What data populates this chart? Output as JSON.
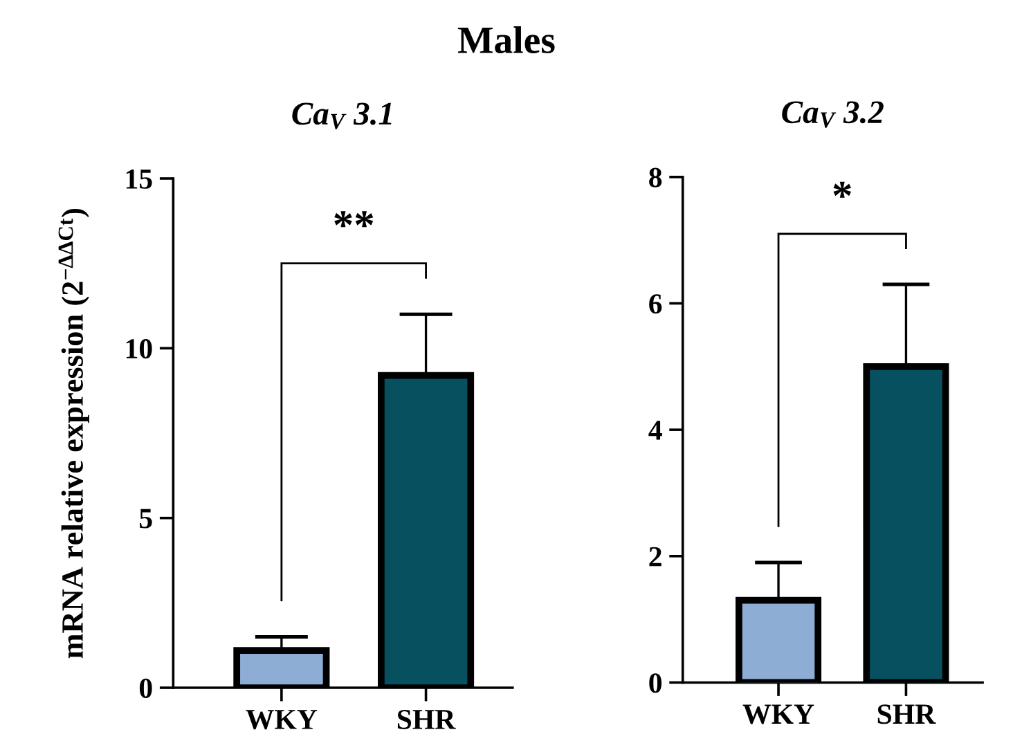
{
  "chart_data": [
    {
      "type": "bar",
      "title": "Males",
      "subtitle": "Ca$_{V}$ 3.1",
      "ylabel": "mRNA relative expression (2$^{−ΔΔCt}$)",
      "categories": [
        "WKY",
        "SHR"
      ],
      "values": [
        1.1,
        9.2
      ],
      "colors": [
        "#8eadd4",
        "#07505f"
      ],
      "errors": [
        [
          1.1,
          1.5
        ],
        [
          9.2,
          11.0
        ]
      ],
      "ylim": [
        0,
        15
      ],
      "yticks": [
        0,
        5,
        10,
        15
      ],
      "grid": false,
      "annotations": [
        "**"
      ]
    },
    {
      "type": "bar",
      "subtitle": "Ca$_{V}$ 3.2",
      "categories": [
        "WKY",
        "SHR"
      ],
      "values": [
        1.3,
        5.0
      ],
      "colors": [
        "#8eadd4",
        "#07505f"
      ],
      "errors": [
        [
          1.3,
          1.9
        ],
        [
          5.0,
          6.3
        ]
      ],
      "ylim": [
        0,
        8
      ],
      "yticks": [
        0,
        2,
        4,
        6,
        8
      ],
      "grid": false,
      "annotations": [
        "*"
      ]
    }
  ]
}
